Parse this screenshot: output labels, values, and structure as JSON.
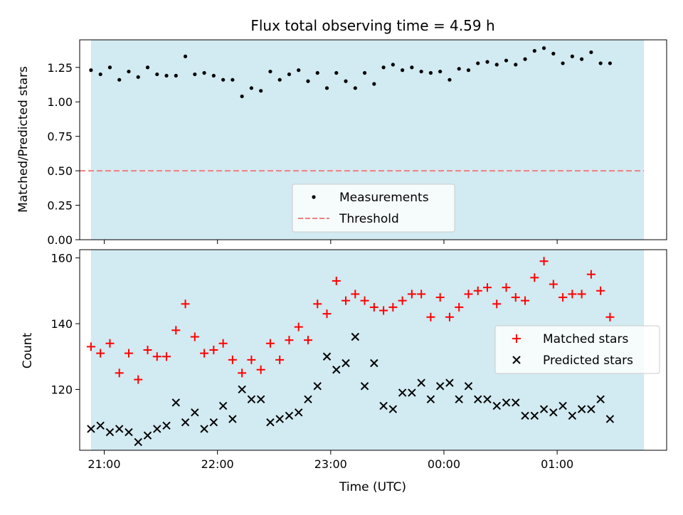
{
  "title": "Flux total observing time = 4.59 h",
  "colors": {
    "shade": "#add8e6",
    "measurement": "#000000",
    "threshold": "#f08080",
    "matched": "#ff0000",
    "predicted": "#000000"
  },
  "chart_data": [
    {
      "type": "scatter",
      "panel": "top",
      "ylabel": "Matched/Predicted stars",
      "ylim": [
        0,
        1.45
      ],
      "yticks": [
        0.0,
        0.25,
        0.5,
        0.75,
        1.0,
        1.25
      ],
      "ytick_labels": [
        "0.00",
        "0.25",
        "0.50",
        "0.75",
        "1.00",
        "1.25"
      ],
      "xlim": [
        "20:47",
        "01:58"
      ],
      "xtick_labels_visible": false,
      "shaded_span": [
        "20:53",
        "01:46"
      ],
      "threshold": 0.5,
      "legend_position": "lower center",
      "legend": [
        {
          "label": "Measurements",
          "marker": "dot"
        },
        {
          "label": "Threshold",
          "marker": "dashed-line"
        }
      ],
      "series": [
        {
          "name": "Measurements",
          "x": [
            "20:53",
            "20:58",
            "21:03",
            "21:08",
            "21:13",
            "21:18",
            "21:23",
            "21:28",
            "21:33",
            "21:38",
            "21:43",
            "21:48",
            "21:53",
            "21:58",
            "22:03",
            "22:08",
            "22:13",
            "22:18",
            "22:23",
            "22:28",
            "22:33",
            "22:38",
            "22:43",
            "22:48",
            "22:53",
            "22:58",
            "23:03",
            "23:08",
            "23:13",
            "23:18",
            "23:23",
            "23:28",
            "23:33",
            "23:38",
            "23:43",
            "23:48",
            "23:53",
            "23:58",
            "00:03",
            "00:08",
            "00:13",
            "00:18",
            "00:23",
            "00:28",
            "00:33",
            "00:38",
            "00:43",
            "00:48",
            "00:53",
            "00:58",
            "01:03",
            "01:08",
            "01:13",
            "01:18",
            "01:23",
            "01:28"
          ],
          "values": [
            1.23,
            1.2,
            1.25,
            1.16,
            1.22,
            1.18,
            1.25,
            1.2,
            1.19,
            1.19,
            1.33,
            1.2,
            1.21,
            1.19,
            1.16,
            1.16,
            1.04,
            1.1,
            1.08,
            1.22,
            1.16,
            1.2,
            1.23,
            1.15,
            1.21,
            1.1,
            1.21,
            1.15,
            1.1,
            1.21,
            1.13,
            1.25,
            1.27,
            1.23,
            1.25,
            1.22,
            1.21,
            1.22,
            1.16,
            1.24,
            1.23,
            1.28,
            1.29,
            1.27,
            1.3,
            1.27,
            1.31,
            1.37,
            1.39,
            1.35,
            1.28,
            1.33,
            1.31,
            1.36,
            1.28,
            1.28
          ]
        }
      ]
    },
    {
      "type": "scatter",
      "panel": "bottom",
      "xlabel": "Time (UTC)",
      "ylabel": "Count",
      "ylim": [
        101.5,
        162.5
      ],
      "yticks": [
        120,
        140,
        160
      ],
      "xlim": [
        "20:47",
        "01:58"
      ],
      "xticks": [
        "21:00",
        "22:00",
        "23:00",
        "00:00",
        "01:00"
      ],
      "shaded_span": [
        "20:53",
        "01:46"
      ],
      "legend_position": "center right",
      "legend": [
        {
          "label": "Matched stars",
          "marker": "plus"
        },
        {
          "label": "Predicted stars",
          "marker": "x"
        }
      ],
      "x": [
        "20:53",
        "20:58",
        "21:03",
        "21:08",
        "21:13",
        "21:18",
        "21:23",
        "21:28",
        "21:33",
        "21:38",
        "21:43",
        "21:48",
        "21:53",
        "21:58",
        "22:03",
        "22:08",
        "22:13",
        "22:18",
        "22:23",
        "22:28",
        "22:33",
        "22:38",
        "22:43",
        "22:48",
        "22:53",
        "22:58",
        "23:03",
        "23:08",
        "23:13",
        "23:18",
        "23:23",
        "23:28",
        "23:33",
        "23:38",
        "23:43",
        "23:48",
        "23:53",
        "23:58",
        "00:03",
        "00:08",
        "00:13",
        "00:18",
        "00:23",
        "00:28",
        "00:33",
        "00:38",
        "00:43",
        "00:48",
        "00:53",
        "00:58",
        "01:03",
        "01:08",
        "01:13",
        "01:18",
        "01:23",
        "01:28"
      ],
      "series": [
        {
          "name": "Matched stars",
          "values": [
            133,
            131,
            134,
            125,
            131,
            123,
            132,
            130,
            130,
            138,
            146,
            136,
            131,
            132,
            134,
            129,
            125,
            129,
            126,
            134,
            129,
            135,
            139,
            135,
            146,
            143,
            153,
            147,
            149,
            147,
            145,
            144,
            145,
            147,
            149,
            149,
            142,
            148,
            142,
            145,
            149,
            150,
            151,
            146,
            151,
            148,
            147,
            154,
            159,
            152,
            148,
            149,
            149,
            155,
            150,
            142
          ]
        },
        {
          "name": "Predicted stars",
          "values": [
            108,
            109,
            107,
            108,
            107,
            104,
            106,
            108,
            109,
            116,
            110,
            113,
            108,
            110,
            115,
            111,
            120,
            117,
            117,
            110,
            111,
            112,
            113,
            117,
            121,
            130,
            126,
            128,
            136,
            121,
            128,
            115,
            114,
            119,
            119,
            122,
            117,
            121,
            122,
            117,
            121,
            117,
            117,
            115,
            116,
            116,
            112,
            112,
            114,
            113,
            115,
            112,
            114,
            114,
            117,
            111
          ]
        }
      ]
    }
  ]
}
